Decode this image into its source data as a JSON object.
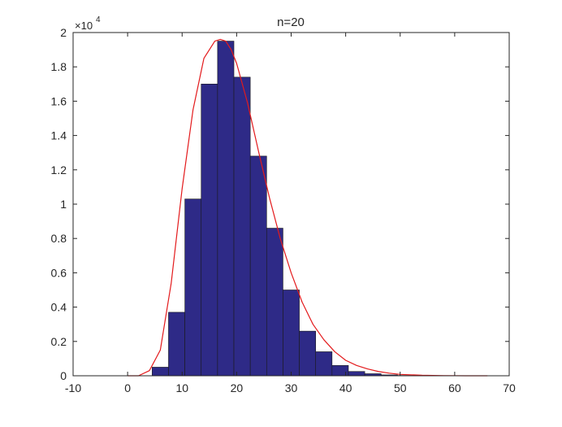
{
  "chart_data": {
    "type": "bar",
    "title": "n=20",
    "xlabel": "",
    "ylabel": "",
    "y_exponent_label": "×10",
    "y_exponent_power": "4",
    "xlim": [
      -10,
      70
    ],
    "ylim": [
      0,
      20000
    ],
    "x_ticks": [
      -10,
      0,
      10,
      20,
      30,
      40,
      50,
      60,
      70
    ],
    "y_ticks": [
      0,
      2000,
      4000,
      6000,
      8000,
      10000,
      12000,
      14000,
      16000,
      18000,
      20000
    ],
    "x_tick_labels": [
      "-10",
      "0",
      "10",
      "20",
      "30",
      "40",
      "50",
      "60",
      "70"
    ],
    "y_tick_labels": [
      "0",
      "0.2",
      "0.4",
      "0.6",
      "0.8",
      "1",
      "1.2",
      "1.4",
      "1.6",
      "1.8",
      "2"
    ],
    "grid": false,
    "series": [
      {
        "kind": "histogram",
        "bin_edges": [
          4.5,
          7.5,
          10.5,
          13.5,
          16.5,
          19.5,
          22.5,
          25.5,
          28.5,
          31.5,
          34.5,
          37.5,
          40.5,
          43.5,
          46.5,
          49.5,
          52.5,
          55.5
        ],
        "values": [
          500,
          3700,
          10300,
          17000,
          19500,
          17400,
          12800,
          8600,
          5000,
          2600,
          1400,
          600,
          250,
          120,
          50,
          20,
          10
        ],
        "color": "#2e2a87"
      },
      {
        "kind": "fit_curve",
        "x": [
          0,
          2,
          4,
          6,
          8,
          10,
          12,
          14,
          16,
          17,
          18,
          19,
          20,
          22,
          24,
          26,
          28,
          30,
          32,
          34,
          36,
          38,
          40,
          42,
          44,
          46,
          48,
          50,
          54,
          58,
          62,
          66
        ],
        "values": [
          0,
          0,
          300,
          1500,
          5400,
          10900,
          15500,
          18500,
          19500,
          19600,
          19500,
          19000,
          18200,
          15900,
          13100,
          10400,
          8000,
          6000,
          4300,
          3000,
          2100,
          1400,
          900,
          600,
          400,
          250,
          150,
          80,
          30,
          10,
          0,
          0
        ],
        "color": "#e31a1c"
      }
    ]
  }
}
